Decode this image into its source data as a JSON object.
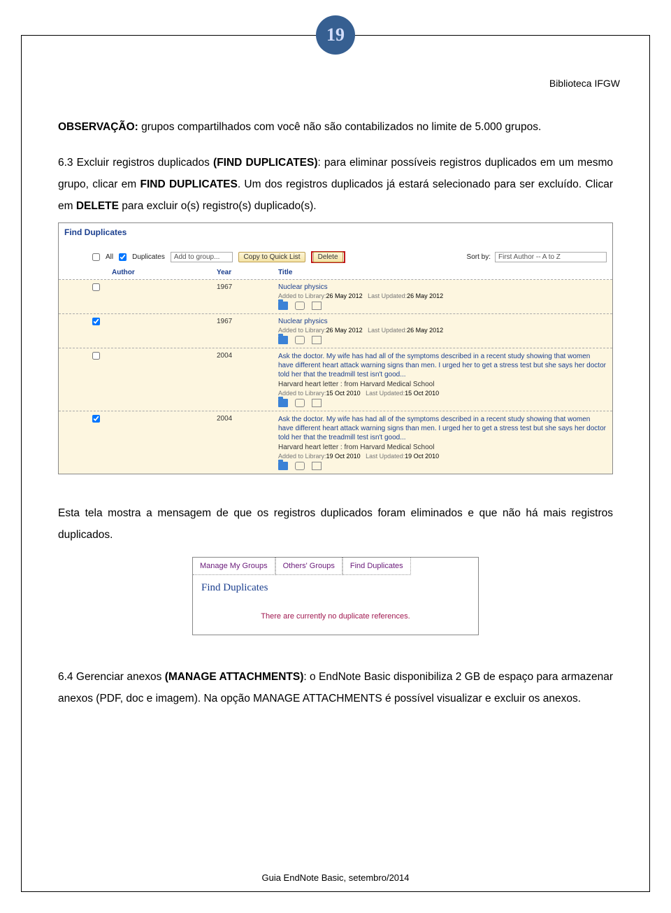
{
  "page_number": "19",
  "header_right": "Biblioteca IFGW",
  "paragraphs": {
    "p1_label": "OBSERVAÇÃO:",
    "p1_text": " grupos compartilhados com você não são contabilizados no limite de 5.000 grupos.",
    "p2_a": "6.3 Excluir registros duplicados ",
    "p2_b": "(FIND DUPLICATES)",
    "p2_c": ": para eliminar possíveis registros duplicados em um mesmo grupo, clicar em ",
    "p2_d": "FIND DUPLICATES",
    "p2_e": ". Um dos registros duplicados já estará selecionado para ser excluído. Clicar em ",
    "p2_f": "DELETE",
    "p2_g": " para excluir o(s) registro(s) duplicado(s).",
    "p3": "Esta tela mostra a mensagem de que os registros duplicados foram eliminados e que não há mais registros duplicados.",
    "p4_a": "6.4 Gerenciar anexos ",
    "p4_b": "(MANAGE ATTACHMENTS)",
    "p4_c": ": o EndNote Basic disponibiliza 2 GB de espaço para armazenar anexos (PDF, doc e imagem). Na opção MANAGE ATTACHMENTS é possível visualizar e excluir os anexos."
  },
  "shot1": {
    "title": "Find Duplicates",
    "all_label": "All",
    "dup_label": "Duplicates",
    "select_group": "Add to group...",
    "btn_copy": "Copy to Quick List",
    "btn_delete": "Delete",
    "sortby_label": "Sort by:",
    "sortby_value": "First Author -- A to Z",
    "hdr_author": "Author",
    "hdr_year": "Year",
    "hdr_title": "Title",
    "rows": [
      {
        "year": "1967",
        "title": "Nuclear physics",
        "added_lbl": "Added to Library:",
        "added_val": "26 May 2012",
        "upd_lbl": "Last Updated:",
        "upd_val": "26 May 2012",
        "checked": false
      },
      {
        "year": "1967",
        "title": "Nuclear physics",
        "added_lbl": "Added to Library:",
        "added_val": "26 May 2012",
        "upd_lbl": "Last Updated:",
        "upd_val": "26 May 2012",
        "checked": true
      },
      {
        "year": "2004",
        "desc": "Ask the doctor. My wife has had all of the symptoms described in a recent study showing that women have different heart attack warning signs than men. I urged her to get a stress test but she says her doctor told her that the treadmill test isn't good...",
        "sub": "Harvard heart letter : from Harvard Medical School",
        "added_lbl": "Added to Library:",
        "added_val": "15 Oct 2010",
        "upd_lbl": "Last Updated:",
        "upd_val": "15 Oct 2010",
        "checked": false
      },
      {
        "year": "2004",
        "desc": "Ask the doctor. My wife has had all of the symptoms described in a recent study showing that women have different heart attack warning signs than men. I urged her to get a stress test but she says her doctor told her that the treadmill test isn't good...",
        "sub": "Harvard heart letter : from Harvard Medical School",
        "added_lbl": "Added to Library:",
        "added_val": "19 Oct 2010",
        "upd_lbl": "Last Updated:",
        "upd_val": "19 Oct 2010",
        "checked": true
      }
    ]
  },
  "shot2": {
    "tabs": [
      "Manage My Groups",
      "Others' Groups",
      "Find Duplicates"
    ],
    "heading": "Find Duplicates",
    "msg": "There are currently no duplicate references."
  },
  "footer": "Guia EndNote Basic, setembro/2014",
  "colors": {
    "badge_bg": "#365f91",
    "badge_fg": "#d4defb",
    "link_blue": "#1b3f8f",
    "row_bg": "#fdf6e0",
    "delete_border": "#c01818",
    "purple": "#6a1a7a",
    "magenta": "#a01850"
  }
}
